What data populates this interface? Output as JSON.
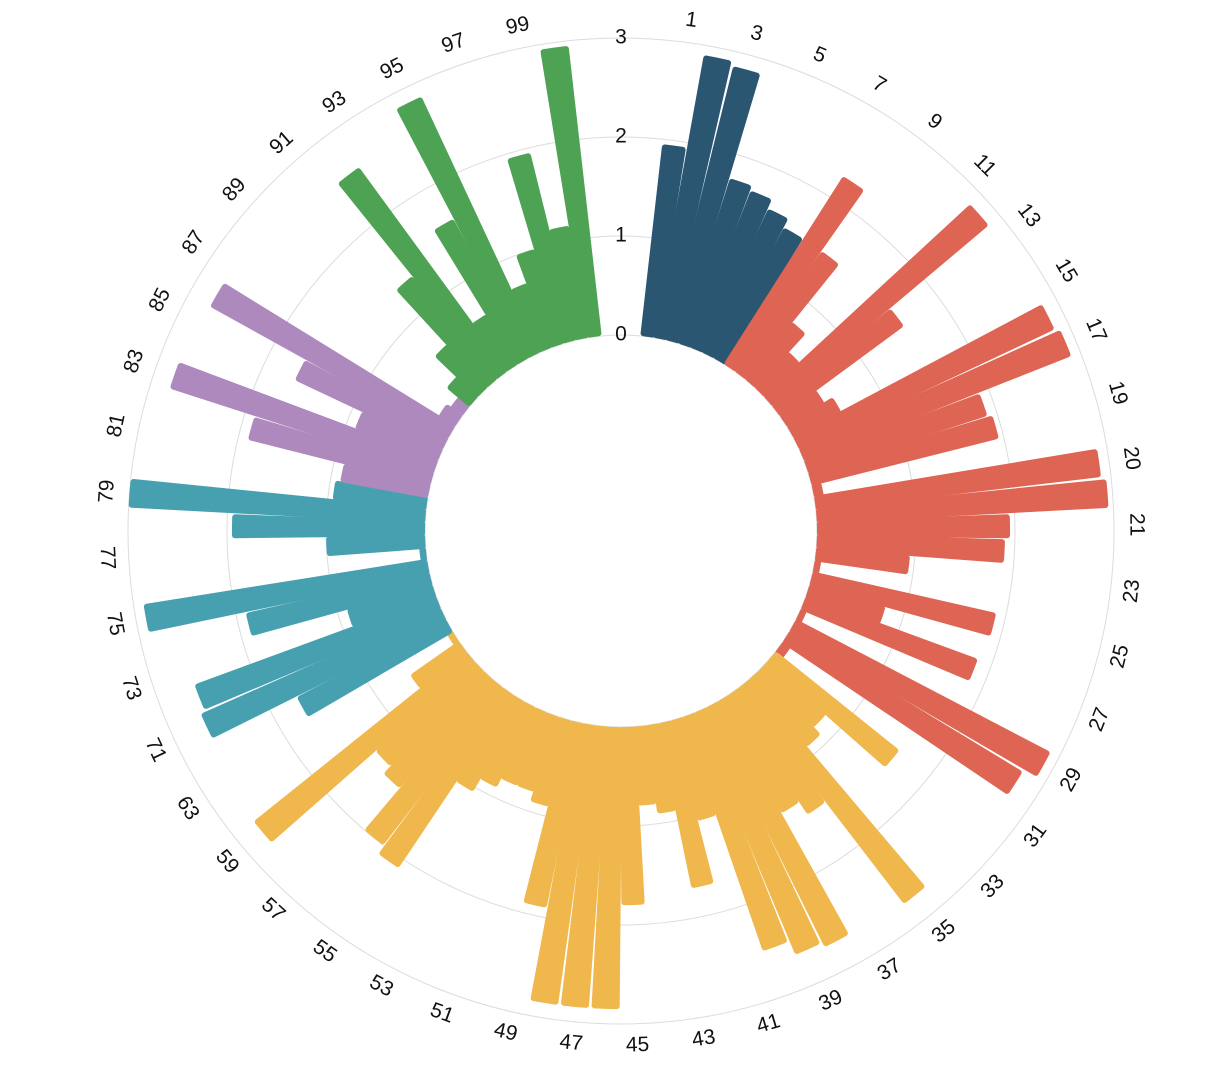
{
  "chart_data": {
    "type": "radial-bar",
    "categories": [
      "1",
      null,
      "3",
      null,
      "5",
      null,
      "7",
      null,
      "9",
      null,
      "11",
      null,
      "13",
      null,
      "15",
      null,
      "17",
      null,
      "19",
      null,
      "20",
      null,
      "21",
      null,
      "23",
      null,
      "25",
      null,
      "27",
      null,
      "29",
      null,
      "31",
      null,
      "33",
      null,
      "35",
      null,
      "37",
      null,
      "39",
      null,
      "41",
      null,
      "43",
      null,
      "45",
      null,
      "47",
      null,
      "49",
      null,
      "51",
      null,
      "53",
      null,
      "55",
      null,
      "57",
      null,
      "59",
      null,
      "63",
      null,
      "71",
      null,
      "73",
      null,
      "75",
      null,
      "77",
      null,
      "79",
      null,
      "81",
      null,
      "83",
      null,
      "85",
      null,
      "87",
      null,
      "89",
      null,
      "91",
      null,
      "93",
      null,
      "95",
      null,
      "97",
      null,
      "99",
      null
    ],
    "values": [
      1.95,
      2.9,
      2.85,
      1.75,
      1.7,
      1.6,
      1.5,
      2.25,
      1.5,
      0.75,
      0.5,
      2.85,
      1.55,
      0.45,
      0.55,
      2.85,
      2.9,
      1.9,
      1.95,
      0.1,
      2.9,
      2.95,
      1.95,
      1.9,
      0.95,
      0.05,
      1.9,
      0.8,
      1.85,
      0.05,
      2.9,
      2.75,
      0.1,
      1.6,
      0.8,
      0.9,
      2.75,
      1.45,
      1.3,
      2.7,
      2.65,
      2.5,
      1.05,
      1.7,
      0.9,
      0.8,
      1.8,
      2.85,
      2.85,
      2.85,
      1.9,
      0.9,
      0.8,
      0.8,
      0.9,
      1.05,
      2.1,
      2.0,
      1.45,
      1.35,
      2.75,
      0.6,
      0.05,
      1.7,
      2.65,
      2.6,
      0.9,
      1.9,
      2.9,
      0.05,
      1.0,
      1.95,
      3.0,
      0.95,
      0.9,
      1.9,
      2.8,
      0.9,
      1.65,
      2.75,
      0.2,
      0.15,
      0.3,
      0.6,
      1.35,
      2.55,
      0.6,
      1.6,
      2.85,
      0.7,
      1.0,
      1.95,
      1.15,
      2.95
    ],
    "bar_colors": [
      "#2b5672",
      "#2b5672",
      "#2b5672",
      "#2b5672",
      "#2b5672",
      "#2b5672",
      "#2b5672",
      "#de6454",
      "#de6454",
      "#de6454",
      "#de6454",
      "#de6454",
      "#de6454",
      "#de6454",
      "#de6454",
      "#de6454",
      "#de6454",
      "#de6454",
      "#de6454",
      "#de6454",
      "#de6454",
      "#de6454",
      "#de6454",
      "#de6454",
      "#de6454",
      "#de6454",
      "#de6454",
      "#de6454",
      "#de6454",
      "#de6454",
      "#de6454",
      "#de6454",
      "#de6454",
      "#efb74c",
      "#efb74c",
      "#efb74c",
      "#efb74c",
      "#efb74c",
      "#efb74c",
      "#efb74c",
      "#efb74c",
      "#efb74c",
      "#efb74c",
      "#efb74c",
      "#efb74c",
      "#efb74c",
      "#efb74c",
      "#efb74c",
      "#efb74c",
      "#efb74c",
      "#efb74c",
      "#efb74c",
      "#efb74c",
      "#efb74c",
      "#efb74c",
      "#efb74c",
      "#efb74c",
      "#efb74c",
      "#efb74c",
      "#efb74c",
      "#efb74c",
      "#efb74c",
      "#efb74c",
      "#47a0b0",
      "#47a0b0",
      "#47a0b0",
      "#47a0b0",
      "#47a0b0",
      "#47a0b0",
      "#47a0b0",
      "#47a0b0",
      "#47a0b0",
      "#47a0b0",
      "#47a0b0",
      "#ad89bd",
      "#ad89bd",
      "#ad89bd",
      "#ad89bd",
      "#ad89bd",
      "#ad89bd",
      "#ad89bd",
      "#ad89bd",
      "#4da253",
      "#4da253",
      "#4da253",
      "#4da253",
      "#4da253",
      "#4da253",
      "#4da253",
      "#4da253",
      "#4da253",
      "#4da253",
      "#4da253",
      "#4da253"
    ],
    "ylim": [
      0,
      3
    ],
    "yticks": [
      0,
      1,
      2,
      3
    ],
    "grid": true
  }
}
